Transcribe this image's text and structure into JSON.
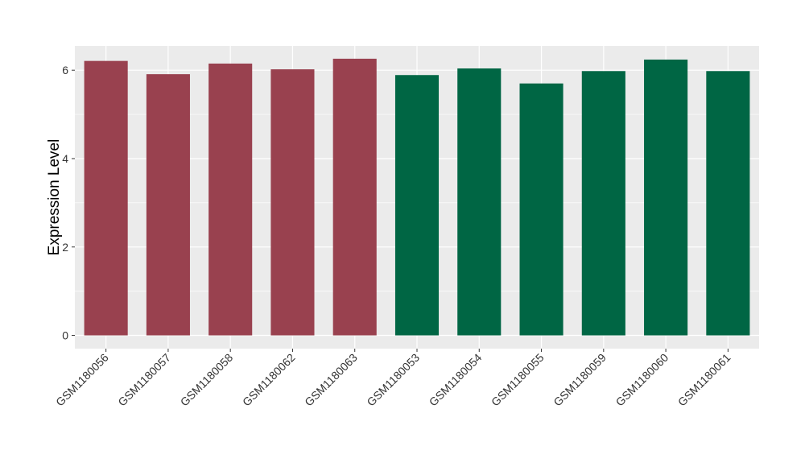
{
  "chart_data": {
    "type": "bar",
    "title": "",
    "xlabel": "",
    "ylabel": "Expression Level",
    "ylim": [
      -0.3,
      6.55
    ],
    "yticks": [
      0,
      2,
      4,
      6
    ],
    "grid": true,
    "legend": "none",
    "panel_color": "#EBEBEB",
    "grid_color": "#FFFFFF",
    "categories": [
      "GSM1180056",
      "GSM1180057",
      "GSM1180058",
      "GSM1180062",
      "GSM1180063",
      "GSM1180053",
      "GSM1180054",
      "GSM1180055",
      "GSM1180059",
      "GSM1180060",
      "GSM1180061"
    ],
    "values": [
      6.21,
      5.91,
      6.15,
      6.02,
      6.26,
      5.89,
      6.04,
      5.7,
      5.98,
      6.24,
      5.98
    ],
    "colors": [
      "#99414F",
      "#99414F",
      "#99414F",
      "#99414F",
      "#99414F",
      "#006644",
      "#006644",
      "#006644",
      "#006644",
      "#006644",
      "#006644"
    ]
  }
}
